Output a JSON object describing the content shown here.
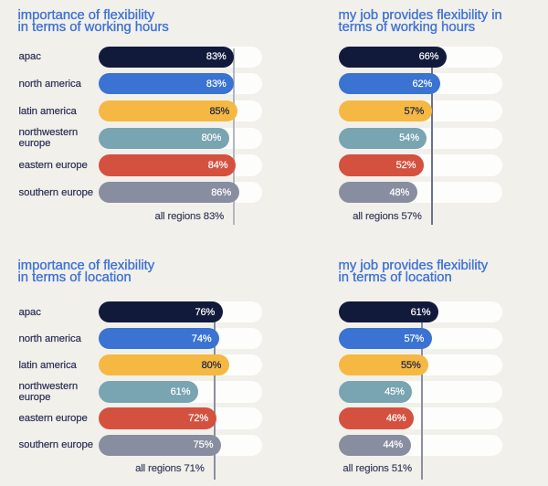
{
  "page": {
    "background_color": "#f2f0eb",
    "title_color": "#3f73d6",
    "label_color": "#2c3156",
    "track_color": "#fdfdfc"
  },
  "regions": [
    {
      "label": "apac",
      "color": "#121a3c",
      "value_text_color": "#ffffff"
    },
    {
      "label": "north america",
      "color": "#3a73d1",
      "value_text_color": "#ffffff"
    },
    {
      "label": "latin america",
      "color": "#f5b843",
      "value_text_color": "#18203f"
    },
    {
      "label": "northwestern europe",
      "color": "#79a4b1",
      "value_text_color": "#ffffff"
    },
    {
      "label": "eastern europe",
      "color": "#d4513f",
      "value_text_color": "#ffffff"
    },
    {
      "label": "southern europe",
      "color": "#898da0",
      "value_text_color": "#ffffff"
    }
  ],
  "chart_data": [
    {
      "type": "bar",
      "position": "top-left",
      "title": "importance of flexibility\nin terms of working hours",
      "categories": [
        "apac",
        "north america",
        "latin america",
        "northwestern europe",
        "eastern europe",
        "southern europe"
      ],
      "values": [
        83,
        83,
        85,
        80,
        84,
        86
      ],
      "value_labels": [
        "83%",
        "83%",
        "85%",
        "80%",
        "84%",
        "86%"
      ],
      "all_regions_label": "all regions 83%",
      "all_regions_value": 83,
      "marker_line_color": "#b4b6bf",
      "show_category_labels": true,
      "xlim": [
        0,
        100
      ]
    },
    {
      "type": "bar",
      "position": "top-right",
      "title": "my job provides flexibility in\nterms of working hours",
      "categories": [
        "apac",
        "north america",
        "latin america",
        "northwestern europe",
        "eastern europe",
        "southern europe"
      ],
      "values": [
        66,
        62,
        57,
        54,
        52,
        48
      ],
      "value_labels": [
        "66%",
        "62%",
        "57%",
        "54%",
        "52%",
        "48%"
      ],
      "all_regions_label": "all regions 57%",
      "all_regions_value": 57,
      "marker_line_color": "#6b7189",
      "show_category_labels": false,
      "xlim": [
        0,
        100
      ]
    },
    {
      "type": "bar",
      "position": "bottom-left",
      "title": "importance of flexibility\nin terms of location",
      "categories": [
        "apac",
        "north america",
        "latin america",
        "northwestern europe",
        "eastern europe",
        "southern europe"
      ],
      "values": [
        76,
        74,
        80,
        61,
        72,
        75
      ],
      "value_labels": [
        "76%",
        "74%",
        "80%",
        "61%",
        "72%",
        "75%"
      ],
      "all_regions_label": "all regions 71%",
      "all_regions_value": 71,
      "marker_line_color": "#8b8ea0",
      "show_category_labels": true,
      "xlim": [
        0,
        100
      ]
    },
    {
      "type": "bar",
      "position": "bottom-right",
      "title": "my job provides flexibility\nin terms of location",
      "categories": [
        "apac",
        "north america",
        "latin america",
        "northwestern europe",
        "eastern europe",
        "southern europe"
      ],
      "values": [
        61,
        57,
        55,
        45,
        46,
        44
      ],
      "value_labels": [
        "61%",
        "57%",
        "55%",
        "45%",
        "46%",
        "44%"
      ],
      "all_regions_label": "all regions 51%",
      "all_regions_value": 51,
      "marker_line_color": "#8b8ea0",
      "show_category_labels": false,
      "xlim": [
        0,
        100
      ]
    }
  ]
}
